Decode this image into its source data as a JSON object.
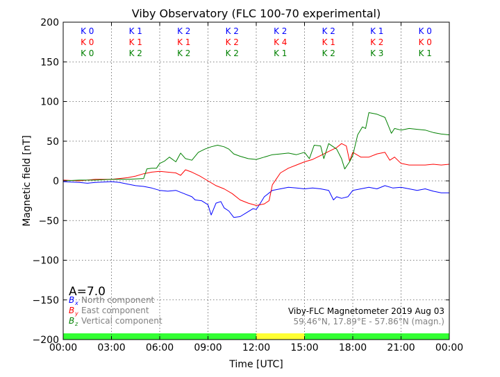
{
  "chart_data": {
    "type": "line",
    "title": "Viby Observatory (FLC 100-70 experimental)",
    "xlabel": "Time [UTC]",
    "ylabel": "Magnetic field [nT]",
    "xlim": [
      0,
      24
    ],
    "ylim": [
      -200,
      200
    ],
    "grid": true,
    "x_ticks": [
      "00:00",
      "03:00",
      "06:00",
      "09:00",
      "12:00",
      "15:00",
      "18:00",
      "21:00",
      "00:00"
    ],
    "y_ticks": [
      "200",
      "150",
      "100",
      "50",
      "0",
      "−50",
      "−100",
      "−150",
      "−200"
    ],
    "k_index_rows": [
      {
        "color": "#0000ff",
        "values": [
          "K 0",
          "K 1",
          "K 2",
          "K 2",
          "K 2",
          "K 2",
          "K 1",
          "K 0"
        ]
      },
      {
        "color": "#ff0000",
        "values": [
          "K 0",
          "K 1",
          "K 1",
          "K 2",
          "K 4",
          "K 1",
          "K 2",
          "K 0"
        ]
      },
      {
        "color": "#008000",
        "values": [
          "K 0",
          "K 2",
          "K 2",
          "K 2",
          "K 1",
          "K 2",
          "K 3",
          "K 1"
        ]
      }
    ],
    "activity_index": "A=7.0",
    "legend": {
      "placement": "bottom-left",
      "entries": [
        {
          "symbol": "B",
          "sub": "x",
          "label": "North component",
          "color": "#0000ff"
        },
        {
          "symbol": "B",
          "sub": "y",
          "label": "East component",
          "color": "#ff0000"
        },
        {
          "symbol": "B",
          "sub": "z",
          "label": "Vertical component",
          "color": "#008000"
        }
      ]
    },
    "annotation_line1": "Viby-FLC Magnetometer 2019 Aug 03",
    "annotation_line2": "59.46°N, 17.89°E - 57.86°N (magn.)",
    "status_bar": [
      {
        "from": 0,
        "to": 12,
        "color": "#33ff33"
      },
      {
        "from": 12,
        "to": 15,
        "color": "#ffff33"
      },
      {
        "from": 15,
        "to": 24,
        "color": "#33ff33"
      }
    ],
    "series": [
      {
        "name": "North component",
        "color": "#0000ff",
        "points": [
          [
            0,
            -1
          ],
          [
            1,
            -2
          ],
          [
            1.5,
            -3
          ],
          [
            2,
            -2
          ],
          [
            3,
            -1
          ],
          [
            3.5,
            -2
          ],
          [
            4,
            -4
          ],
          [
            4.5,
            -6
          ],
          [
            5,
            -7
          ],
          [
            5.5,
            -9
          ],
          [
            6,
            -12
          ],
          [
            6.5,
            -13
          ],
          [
            7,
            -12
          ],
          [
            7.5,
            -16
          ],
          [
            8,
            -20
          ],
          [
            8.2,
            -24
          ],
          [
            8.6,
            -25
          ],
          [
            9,
            -30
          ],
          [
            9.2,
            -43
          ],
          [
            9.5,
            -28
          ],
          [
            9.8,
            -26
          ],
          [
            10,
            -34
          ],
          [
            10.3,
            -38
          ],
          [
            10.6,
            -46
          ],
          [
            11,
            -45
          ],
          [
            11.4,
            -40
          ],
          [
            11.8,
            -35
          ],
          [
            12,
            -36
          ],
          [
            12.2,
            -30
          ],
          [
            12.5,
            -20
          ],
          [
            13,
            -12
          ],
          [
            13.5,
            -10
          ],
          [
            14,
            -8
          ],
          [
            14.5,
            -9
          ],
          [
            15,
            -10
          ],
          [
            15.5,
            -9
          ],
          [
            16,
            -10
          ],
          [
            16.5,
            -12
          ],
          [
            16.8,
            -24
          ],
          [
            17,
            -20
          ],
          [
            17.3,
            -22
          ],
          [
            17.7,
            -20
          ],
          [
            18,
            -12
          ],
          [
            18.5,
            -10
          ],
          [
            19,
            -8
          ],
          [
            19.5,
            -10
          ],
          [
            20,
            -6
          ],
          [
            20.5,
            -9
          ],
          [
            21,
            -8
          ],
          [
            21.5,
            -10
          ],
          [
            22,
            -12
          ],
          [
            22.5,
            -10
          ],
          [
            23,
            -13
          ],
          [
            23.5,
            -15
          ],
          [
            24,
            -15
          ]
        ]
      },
      {
        "name": "East component",
        "color": "#ff0000",
        "points": [
          [
            0,
            1
          ],
          [
            1,
            0
          ],
          [
            2,
            2
          ],
          [
            3,
            2
          ],
          [
            3.5,
            3
          ],
          [
            4,
            4
          ],
          [
            4.5,
            6
          ],
          [
            5,
            9
          ],
          [
            5.5,
            11
          ],
          [
            6,
            12
          ],
          [
            6.5,
            11
          ],
          [
            7,
            10
          ],
          [
            7.3,
            7
          ],
          [
            7.6,
            14
          ],
          [
            8,
            11
          ],
          [
            8.5,
            6
          ],
          [
            9,
            0
          ],
          [
            9.5,
            -6
          ],
          [
            10,
            -10
          ],
          [
            10.5,
            -16
          ],
          [
            11,
            -24
          ],
          [
            11.5,
            -28
          ],
          [
            12,
            -31
          ],
          [
            12.5,
            -29
          ],
          [
            12.8,
            -25
          ],
          [
            13,
            -5
          ],
          [
            13.5,
            10
          ],
          [
            14,
            16
          ],
          [
            14.5,
            20
          ],
          [
            15,
            24
          ],
          [
            15.5,
            27
          ],
          [
            16,
            32
          ],
          [
            16.5,
            37
          ],
          [
            17,
            42
          ],
          [
            17.3,
            47
          ],
          [
            17.6,
            44
          ],
          [
            17.8,
            25
          ],
          [
            18,
            36
          ],
          [
            18.5,
            30
          ],
          [
            19,
            30
          ],
          [
            19.5,
            34
          ],
          [
            20,
            36
          ],
          [
            20.3,
            26
          ],
          [
            20.6,
            30
          ],
          [
            21,
            22
          ],
          [
            21.5,
            20
          ],
          [
            22,
            20
          ],
          [
            22.5,
            20
          ],
          [
            23,
            21
          ],
          [
            23.5,
            20
          ],
          [
            24,
            21
          ]
        ]
      },
      {
        "name": "Vertical component",
        "color": "#008000",
        "points": [
          [
            0,
            0
          ],
          [
            1,
            1
          ],
          [
            2,
            1
          ],
          [
            3,
            2
          ],
          [
            4,
            2
          ],
          [
            5,
            3
          ],
          [
            5.2,
            15
          ],
          [
            5.5,
            16
          ],
          [
            5.8,
            16
          ],
          [
            6,
            22
          ],
          [
            6.3,
            25
          ],
          [
            6.6,
            30
          ],
          [
            7,
            24
          ],
          [
            7.3,
            35
          ],
          [
            7.6,
            28
          ],
          [
            8,
            26
          ],
          [
            8.4,
            36
          ],
          [
            8.8,
            40
          ],
          [
            9.2,
            43
          ],
          [
            9.6,
            45
          ],
          [
            10,
            43
          ],
          [
            10.3,
            40
          ],
          [
            10.6,
            34
          ],
          [
            11,
            31
          ],
          [
            11.5,
            28
          ],
          [
            12,
            27
          ],
          [
            12.5,
            30
          ],
          [
            13,
            33
          ],
          [
            13.5,
            34
          ],
          [
            14,
            35
          ],
          [
            14.5,
            33
          ],
          [
            15,
            36
          ],
          [
            15.3,
            28
          ],
          [
            15.6,
            45
          ],
          [
            16,
            44
          ],
          [
            16.2,
            28
          ],
          [
            16.5,
            47
          ],
          [
            17,
            40
          ],
          [
            17.3,
            28
          ],
          [
            17.5,
            15
          ],
          [
            17.8,
            24
          ],
          [
            18,
            32
          ],
          [
            18.3,
            58
          ],
          [
            18.6,
            68
          ],
          [
            18.8,
            66
          ],
          [
            19,
            86
          ],
          [
            19.5,
            84
          ],
          [
            20,
            80
          ],
          [
            20.2,
            70
          ],
          [
            20.4,
            60
          ],
          [
            20.6,
            66
          ],
          [
            21,
            64
          ],
          [
            21.5,
            66
          ],
          [
            22,
            65
          ],
          [
            22.5,
            64
          ],
          [
            23,
            61
          ],
          [
            23.5,
            59
          ],
          [
            24,
            58
          ]
        ]
      }
    ]
  }
}
